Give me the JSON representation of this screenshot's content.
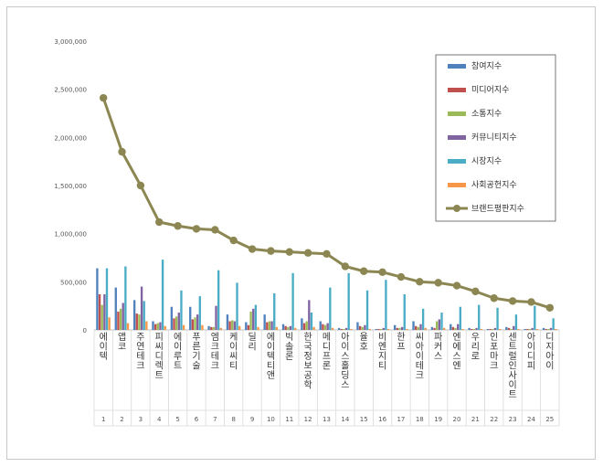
{
  "chart_data": {
    "type": "bar",
    "title": "",
    "xlabel": "",
    "ylabel": "",
    "ylim": [
      0,
      3000000
    ],
    "yticks": [
      "3,000,000",
      "2,500,000",
      "2,000,000",
      "1,500,000",
      "1,000,000",
      "500,000",
      "0"
    ],
    "grid": false,
    "legend_position": "top-right",
    "categories": [
      "에이텍",
      "앱코",
      "주연테크",
      "피씨디렉트",
      "에이루트",
      "푸른기술",
      "엠크테크",
      "케이씨티",
      "딜리",
      "에이텍티앤",
      "빅솔론",
      "한국정보공학",
      "메디프론",
      "아이스홀딩스",
      "율호",
      "비엔지티",
      "한프",
      "씨아이테크",
      "파커스",
      "엔에스엔",
      "우리로",
      "인포마크",
      "센트럴인사이트",
      "아이디피",
      "디지아이"
    ],
    "index_labels": [
      "1",
      "2",
      "3",
      "4",
      "5",
      "6",
      "7",
      "8",
      "9",
      "10",
      "11",
      "12",
      "13",
      "14",
      "15",
      "16",
      "17",
      "18",
      "19",
      "20",
      "21",
      "22",
      "23",
      "24",
      "25"
    ],
    "series": [
      {
        "name": "참여지수",
        "type": "bar",
        "color": "#4f81bd",
        "values": [
          640000,
          440000,
          310000,
          90000,
          240000,
          240000,
          40000,
          160000,
          80000,
          160000,
          60000,
          120000,
          90000,
          20000,
          80000,
          10000,
          50000,
          90000,
          30000,
          60000,
          20000,
          10000,
          30000,
          10000,
          20000
        ]
      },
      {
        "name": "미디어지수",
        "type": "bar",
        "color": "#c0504d",
        "values": [
          370000,
          190000,
          170000,
          60000,
          120000,
          110000,
          30000,
          90000,
          50000,
          80000,
          40000,
          70000,
          60000,
          10000,
          40000,
          10000,
          20000,
          40000,
          20000,
          30000,
          10000,
          10000,
          20000,
          10000,
          10000
        ]
      },
      {
        "name": "소통지수",
        "type": "bar",
        "color": "#9bbb59",
        "values": [
          260000,
          220000,
          160000,
          70000,
          140000,
          130000,
          30000,
          100000,
          190000,
          90000,
          30000,
          90000,
          50000,
          10000,
          30000,
          10000,
          20000,
          30000,
          90000,
          20000,
          10000,
          10000,
          10000,
          10000,
          10000
        ]
      },
      {
        "name": "커뮤니티지수",
        "type": "bar",
        "color": "#8064a2",
        "values": [
          370000,
          280000,
          450000,
          80000,
          180000,
          160000,
          250000,
          90000,
          220000,
          90000,
          40000,
          310000,
          70000,
          20000,
          50000,
          20000,
          30000,
          60000,
          110000,
          60000,
          20000,
          20000,
          40000,
          20000,
          20000
        ]
      },
      {
        "name": "시장지수",
        "type": "bar",
        "color": "#4bacc6",
        "values": [
          640000,
          660000,
          300000,
          730000,
          410000,
          350000,
          620000,
          490000,
          260000,
          380000,
          590000,
          180000,
          440000,
          590000,
          410000,
          520000,
          370000,
          220000,
          180000,
          240000,
          260000,
          230000,
          160000,
          250000,
          120000
        ]
      },
      {
        "name": "사회공헌지수",
        "type": "bar",
        "color": "#f79646",
        "values": [
          130000,
          70000,
          90000,
          40000,
          50000,
          50000,
          20000,
          40000,
          30000,
          30000,
          20000,
          30000,
          20000,
          10000,
          10000,
          10000,
          10000,
          20000,
          20000,
          10000,
          10000,
          10000,
          10000,
          10000,
          10000
        ]
      },
      {
        "name": "브랜드평판지수",
        "type": "line",
        "color": "#8c8752",
        "values": [
          2410000,
          1850000,
          1500000,
          1120000,
          1080000,
          1050000,
          1040000,
          930000,
          840000,
          820000,
          810000,
          800000,
          790000,
          660000,
          610000,
          600000,
          550000,
          500000,
          490000,
          460000,
          400000,
          330000,
          300000,
          290000,
          230000
        ]
      }
    ]
  }
}
